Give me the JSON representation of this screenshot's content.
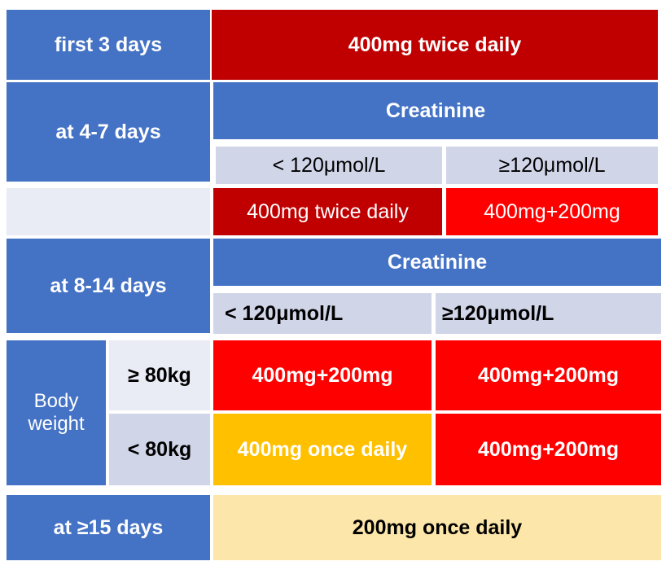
{
  "table": {
    "first_3_days": {
      "label": "first 3 days",
      "dose": "400mg twice daily"
    },
    "days_4_7": {
      "label": "at 4-7 days",
      "header": "Creatinine",
      "low": "< 120μmol/L",
      "high": "≥120μmol/L",
      "low_dose": "400mg twice daily",
      "high_dose": "400mg+200mg"
    },
    "days_8_14": {
      "label": "at 8-14 days",
      "header": "Creatinine",
      "low": "< 120μmol/L",
      "high": "≥120μmol/L",
      "body_weight": "Body weight",
      "rows": [
        {
          "weight": "≥ 80kg",
          "low_dose": "400mg+200mg",
          "high_dose": "400mg+200mg"
        },
        {
          "weight": "< 80kg",
          "low_dose": "400mg once daily",
          "high_dose": "400mg+200mg"
        }
      ]
    },
    "days_15": {
      "label": "at ≥15 days",
      "dose": "200mg once daily"
    }
  }
}
